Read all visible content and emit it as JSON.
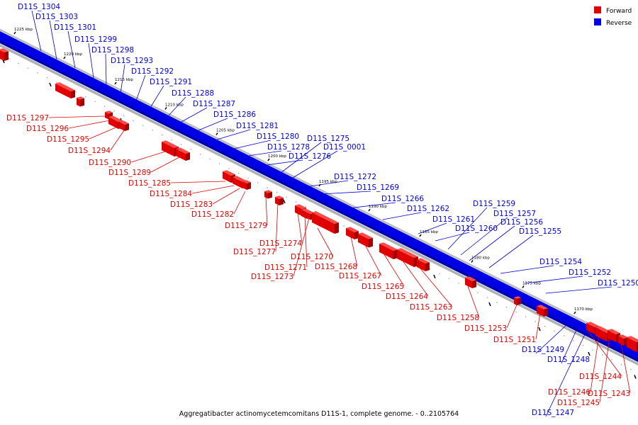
{
  "caption": "Aggregatibacter actinomycetemcomitans D11S-1, complete genome. - 0..2105764",
  "legend": [
    {
      "label": "Forward",
      "color": "#e00000"
    },
    {
      "label": "Reverse",
      "color": "#0000e6"
    }
  ],
  "ticks": [
    "1225 kbp",
    "1220 kbp",
    "1215 kbp",
    "1210 kbp",
    "1205 kbp",
    "1200 kbp",
    "1195 kbp",
    "1190 kbp",
    "1185 kbp",
    "1180 kbp",
    "1175 kbp",
    "1170 kbp"
  ],
  "reverse_genes": [
    "D11S_1304",
    "D11S_1303",
    "D11S_1301",
    "D11S_1299",
    "D11S_1298",
    "D11S_1293",
    "D11S_1292",
    "D11S_1291",
    "D11S_1288",
    "D11S_1287",
    "D11S_1286",
    "D11S_1281",
    "D11S_1280",
    "D11S_1278",
    "D11S_1276",
    "D11S_1275",
    "D11S_0001",
    "D11S_1272",
    "D11S_1269",
    "D11S_1266",
    "D11S_1262",
    "D11S_1261",
    "D11S_1260",
    "D11S_1259",
    "D11S_1257",
    "D11S_1256",
    "D11S_1255",
    "D11S_1254",
    "D11S_1252",
    "D11S_1250",
    "D11S_1249",
    "D11S_1248",
    "D11S_1247"
  ],
  "forward_genes": [
    "D11S_1297",
    "D11S_1296",
    "D11S_1295",
    "D11S_1294",
    "D11S_1290",
    "D11S_1289",
    "D11S_1285",
    "D11S_1284",
    "D11S_1283",
    "D11S_1282",
    "D11S_1279",
    "D11S_1277",
    "D11S_1274",
    "D11S_1271",
    "D11S_1273",
    "D11S_1270",
    "D11S_1268",
    "D11S_1267",
    "D11S_1265",
    "D11S_1264",
    "D11S_1263",
    "D11S_1258",
    "D11S_1253",
    "D11S_1251",
    "D11S_1244",
    "D11S_1246",
    "D11S_1245",
    "D11S_1243"
  ]
}
